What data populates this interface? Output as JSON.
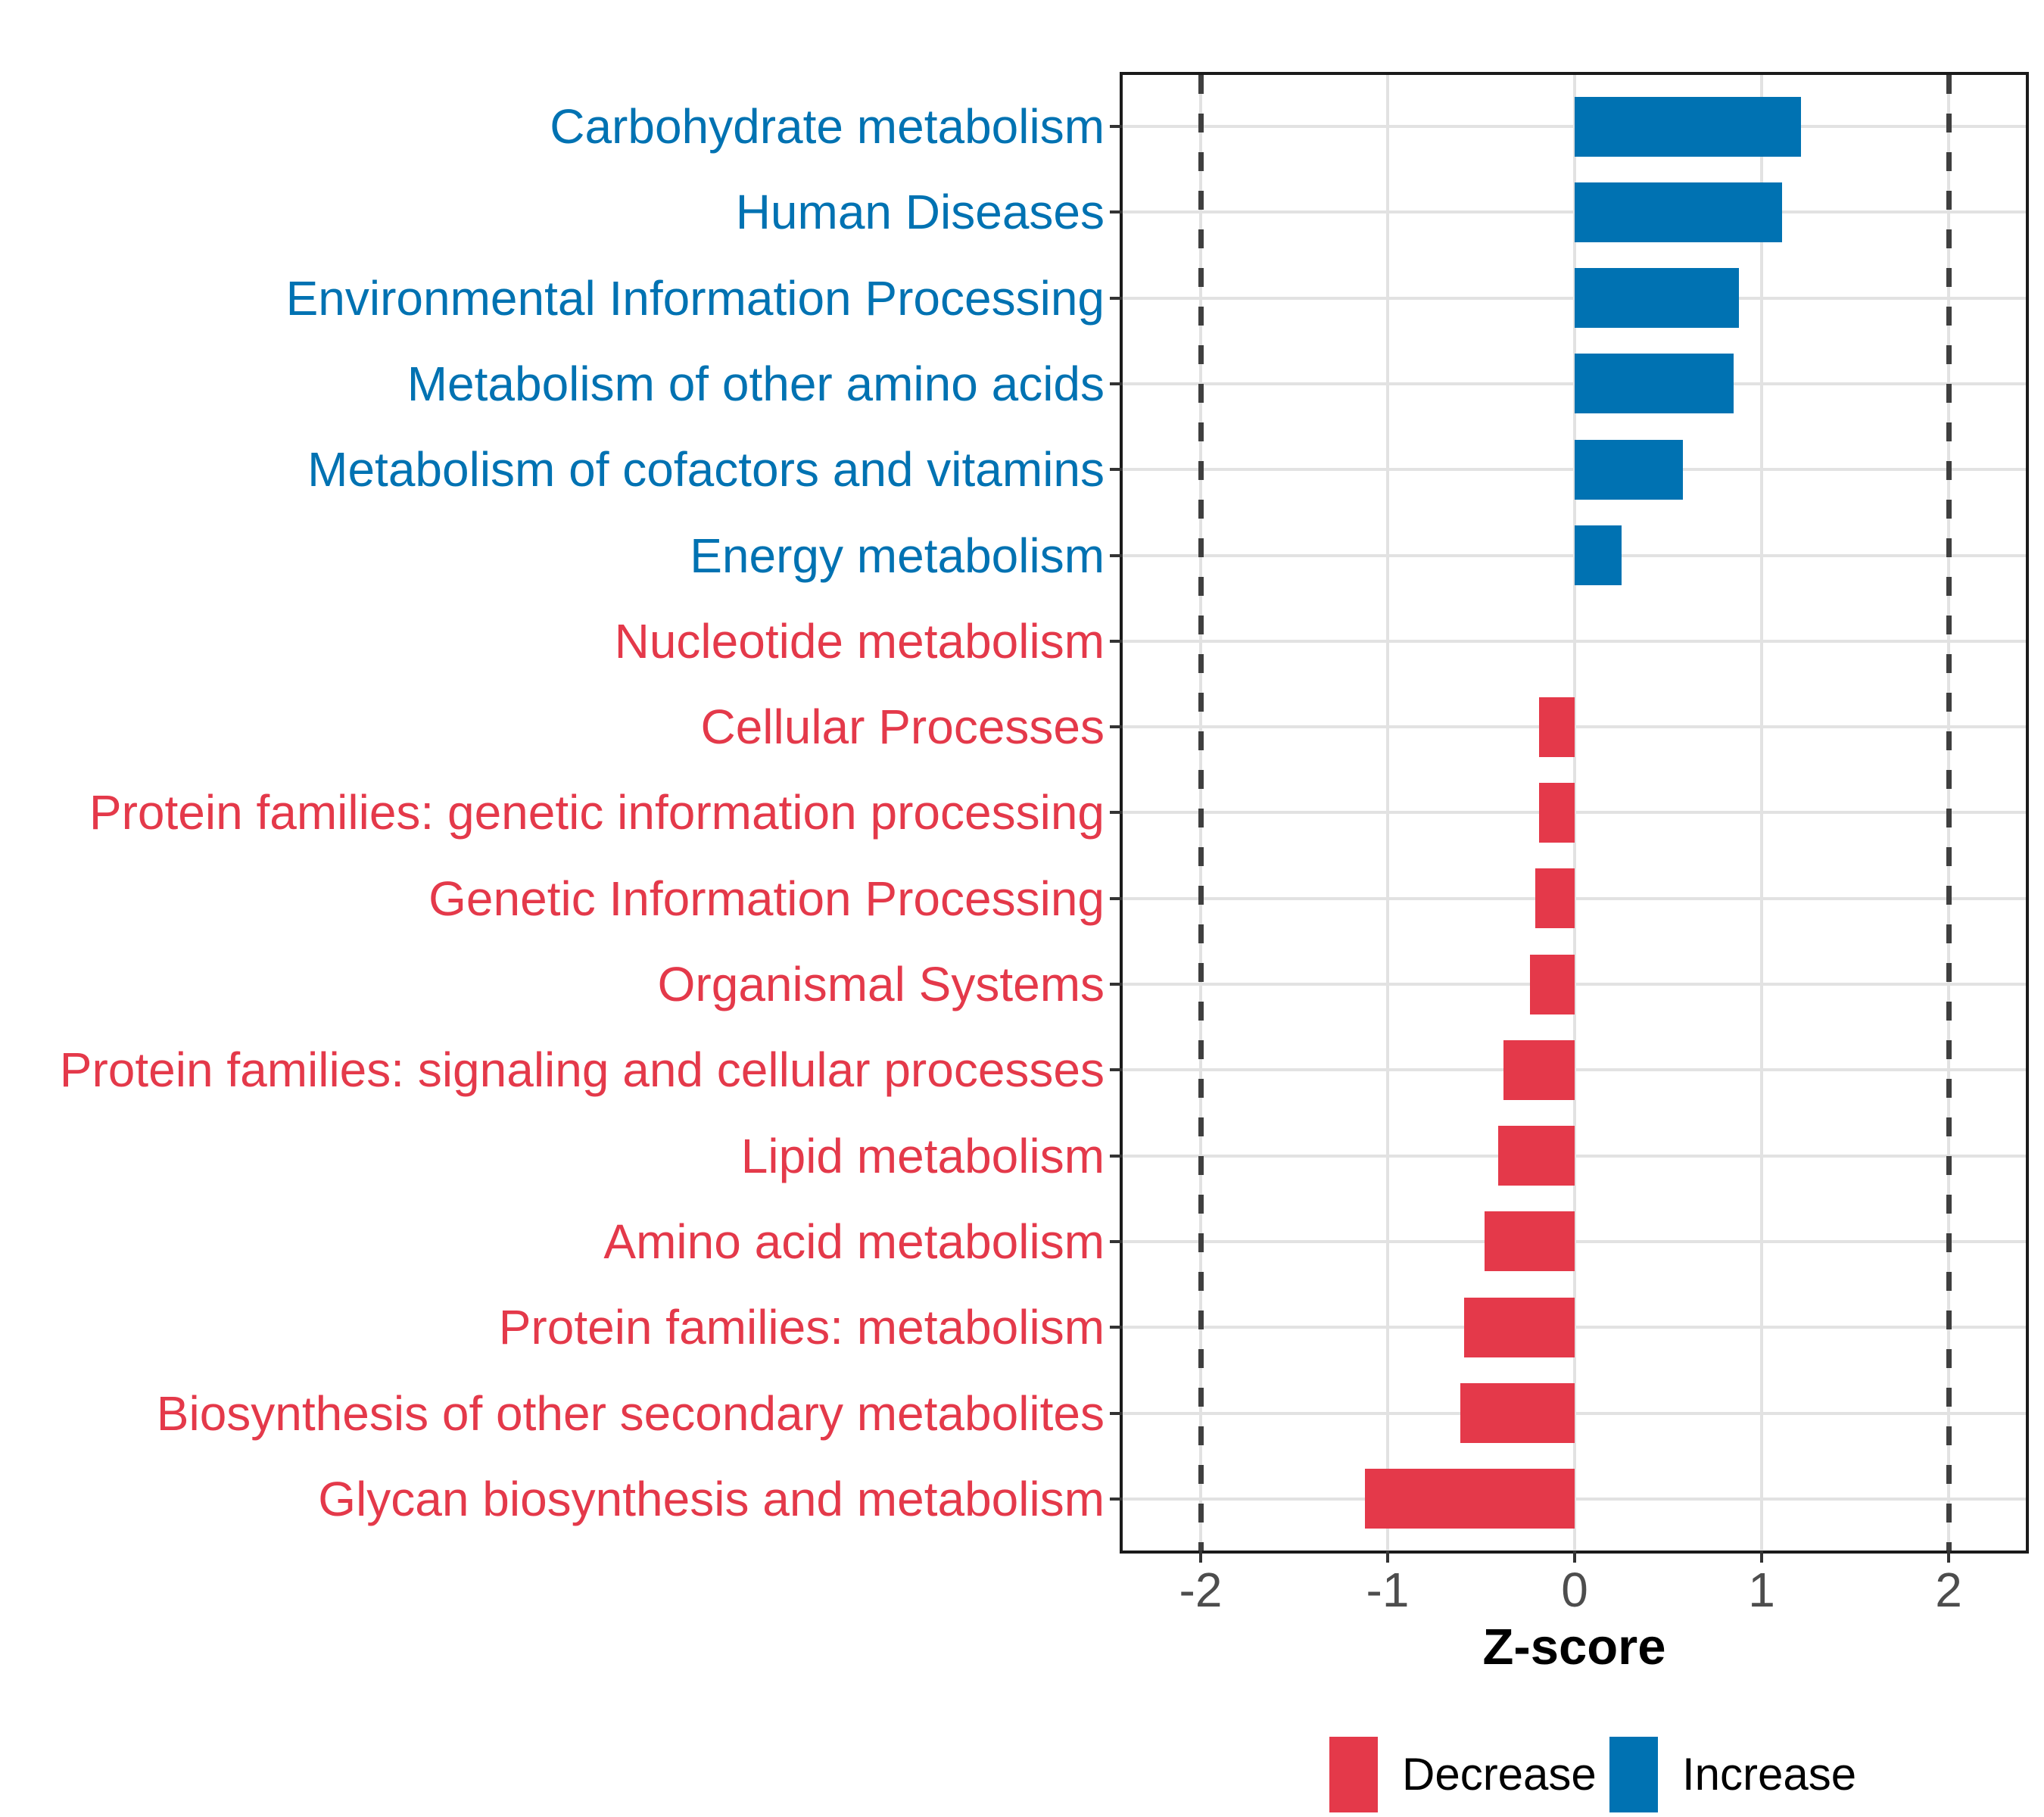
{
  "chart_data": {
    "type": "bar",
    "orientation": "horizontal",
    "xlabel": "Z-score",
    "x_ticks": [
      -2,
      -1,
      0,
      1,
      2
    ],
    "x_tick_labels": [
      "-2",
      "-1",
      "0",
      "1",
      "2"
    ],
    "xlim": [
      -2.42,
      2.41
    ],
    "grid": "major gridlines only, light gray on white",
    "reference_lines": {
      "values": [
        -2,
        2
      ],
      "style": "dashed",
      "color": "#3f3f3f"
    },
    "categories": [
      "Carbohydrate metabolism",
      "Human Diseases",
      "Environmental Information Processing",
      "Metabolism of other amino acids",
      "Metabolism of cofactors and vitamins",
      "Energy metabolism",
      "Nucleotide metabolism",
      "Cellular Processes",
      "Protein families: genetic information processing",
      "Genetic Information Processing",
      "Organismal Systems",
      "Protein families: signaling and cellular processes",
      "Lipid metabolism",
      "Amino acid metabolism",
      "Protein families: metabolism",
      "Biosynthesis of other secondary metabolites",
      "Glycan biosynthesis and metabolism"
    ],
    "values": [
      1.21,
      1.11,
      0.88,
      0.85,
      0.58,
      0.25,
      0.0,
      -0.19,
      -0.19,
      -0.21,
      -0.24,
      -0.38,
      -0.41,
      -0.48,
      -0.59,
      -0.61,
      -1.12
    ],
    "directions": [
      "increase",
      "increase",
      "increase",
      "increase",
      "increase",
      "increase",
      "decrease",
      "decrease",
      "decrease",
      "decrease",
      "decrease",
      "decrease",
      "decrease",
      "decrease",
      "decrease",
      "decrease",
      "decrease"
    ],
    "colors": {
      "increase": "#0072B2",
      "decrease": "#E4394A"
    },
    "legend_position": "bottom"
  },
  "axis": {
    "title": "Z-score"
  },
  "legend": {
    "decrease_label": "Decrease",
    "increase_label": "Increase",
    "decrease_color": "#E4394A",
    "increase_color": "#0072B2"
  }
}
